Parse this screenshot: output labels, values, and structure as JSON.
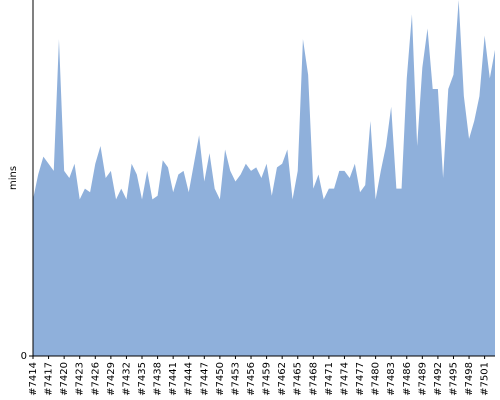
{
  "chart_data": {
    "type": "area",
    "y_label": "mins",
    "color": "#8fb0db",
    "categories": [
      "#7414",
      null,
      null,
      "#7417",
      null,
      null,
      "#7420",
      null,
      null,
      "#7423",
      null,
      null,
      "#7426",
      null,
      null,
      "#7429",
      null,
      null,
      "#7432",
      null,
      null,
      "#7435",
      null,
      null,
      "#7438",
      null,
      null,
      "#7441",
      null,
      null,
      "#7444",
      null,
      null,
      "#7447",
      null,
      null,
      "#7450",
      null,
      null,
      "#7453",
      null,
      null,
      "#7456",
      null,
      null,
      "#7459",
      null,
      null,
      "#7462",
      null,
      null,
      "#7465",
      null,
      null,
      "#7468",
      null,
      null,
      "#7471",
      null,
      null,
      "#7474",
      null,
      null,
      "#7477",
      null,
      null,
      "#7480",
      null,
      null,
      "#7483",
      null,
      null,
      "#7486",
      null,
      null,
      "#7489",
      null,
      null,
      "#7492",
      null,
      null,
      "#7495",
      null,
      null,
      "#7498",
      null,
      null,
      "#7501",
      null,
      null
    ],
    "values": [
      44,
      51,
      56,
      54,
      52,
      89,
      52,
      50,
      54,
      44,
      47,
      46,
      54,
      59,
      50,
      52,
      44,
      47,
      44,
      54,
      51,
      44,
      52,
      44,
      45,
      55,
      53,
      46,
      51,
      52,
      46,
      54,
      62,
      49,
      57,
      47,
      44,
      58,
      52,
      49,
      51,
      54,
      52,
      53,
      50,
      54,
      45,
      53,
      54,
      58,
      44,
      52,
      89,
      79,
      47,
      51,
      44,
      47,
      47,
      52,
      52,
      50,
      54,
      46,
      48,
      66,
      44,
      52,
      59,
      70,
      47,
      47,
      78,
      96,
      59,
      81,
      92,
      75,
      75,
      50,
      75,
      79,
      100,
      73,
      61,
      66,
      73,
      90,
      78,
      86
    ],
    "ylim": [
      0,
      100
    ],
    "yticks": [
      0
    ]
  }
}
